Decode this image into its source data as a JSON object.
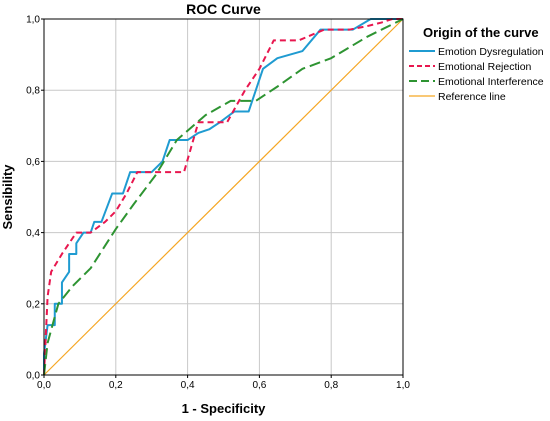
{
  "chart_data": {
    "type": "line",
    "title": "ROC Curve",
    "xlabel": "1 - Specificity",
    "ylabel": "Sensibility",
    "xlim": [
      0,
      1
    ],
    "ylim": [
      0,
      1
    ],
    "x_ticks": [
      "0,0",
      "0,2",
      "0,4",
      "0,6",
      "0,8",
      "1,0"
    ],
    "y_ticks": [
      "0,0",
      "0,2",
      "0,4",
      "0,6",
      "0,8",
      "1,0"
    ],
    "grid": true,
    "legend_title": "Origin of the curve",
    "legend_position": "right",
    "series": [
      {
        "name": "Emotion Dysregulation",
        "color": "#1f9bd1",
        "style": "solid",
        "points": [
          [
            0,
            0
          ],
          [
            0,
            0.06
          ],
          [
            0.01,
            0.14
          ],
          [
            0.03,
            0.14
          ],
          [
            0.03,
            0.2
          ],
          [
            0.05,
            0.2
          ],
          [
            0.05,
            0.26
          ],
          [
            0.07,
            0.29
          ],
          [
            0.07,
            0.34
          ],
          [
            0.09,
            0.34
          ],
          [
            0.09,
            0.37
          ],
          [
            0.11,
            0.4
          ],
          [
            0.13,
            0.4
          ],
          [
            0.14,
            0.43
          ],
          [
            0.16,
            0.43
          ],
          [
            0.19,
            0.51
          ],
          [
            0.22,
            0.51
          ],
          [
            0.24,
            0.57
          ],
          [
            0.3,
            0.57
          ],
          [
            0.33,
            0.6
          ],
          [
            0.35,
            0.66
          ],
          [
            0.4,
            0.66
          ],
          [
            0.43,
            0.68
          ],
          [
            0.46,
            0.69
          ],
          [
            0.49,
            0.71
          ],
          [
            0.53,
            0.74
          ],
          [
            0.57,
            0.74
          ],
          [
            0.61,
            0.86
          ],
          [
            0.65,
            0.89
          ],
          [
            0.72,
            0.91
          ],
          [
            0.77,
            0.97
          ],
          [
            0.86,
            0.97
          ],
          [
            0.91,
            1.0
          ],
          [
            1,
            1
          ]
        ]
      },
      {
        "name": "Emotional Rejection",
        "color": "#e8174f",
        "style": "dash",
        "points": [
          [
            0,
            0
          ],
          [
            0.01,
            0.22
          ],
          [
            0.02,
            0.29
          ],
          [
            0.05,
            0.34
          ],
          [
            0.07,
            0.37
          ],
          [
            0.09,
            0.4
          ],
          [
            0.13,
            0.4
          ],
          [
            0.17,
            0.43
          ],
          [
            0.2,
            0.46
          ],
          [
            0.23,
            0.51
          ],
          [
            0.26,
            0.57
          ],
          [
            0.39,
            0.57
          ],
          [
            0.43,
            0.71
          ],
          [
            0.51,
            0.71
          ],
          [
            0.56,
            0.8
          ],
          [
            0.6,
            0.86
          ],
          [
            0.64,
            0.94
          ],
          [
            0.71,
            0.94
          ],
          [
            0.78,
            0.97
          ],
          [
            0.85,
            0.97
          ],
          [
            0.9,
            0.98
          ],
          [
            0.94,
            0.99
          ],
          [
            0.97,
            1.0
          ],
          [
            1,
            1
          ]
        ]
      },
      {
        "name": "Emotional Interference",
        "color": "#2e9432",
        "style": "longdash",
        "points": [
          [
            0,
            0
          ],
          [
            0.01,
            0.09
          ],
          [
            0.04,
            0.2
          ],
          [
            0.08,
            0.25
          ],
          [
            0.13,
            0.3
          ],
          [
            0.2,
            0.41
          ],
          [
            0.25,
            0.48
          ],
          [
            0.31,
            0.56
          ],
          [
            0.37,
            0.66
          ],
          [
            0.45,
            0.73
          ],
          [
            0.52,
            0.77
          ],
          [
            0.59,
            0.77
          ],
          [
            0.65,
            0.81
          ],
          [
            0.72,
            0.86
          ],
          [
            0.8,
            0.89
          ],
          [
            0.9,
            0.95
          ],
          [
            1,
            1
          ]
        ]
      },
      {
        "name": "Reference line",
        "color": "#f5a623",
        "style": "solid",
        "points": [
          [
            0,
            0
          ],
          [
            1,
            1
          ]
        ]
      }
    ]
  }
}
